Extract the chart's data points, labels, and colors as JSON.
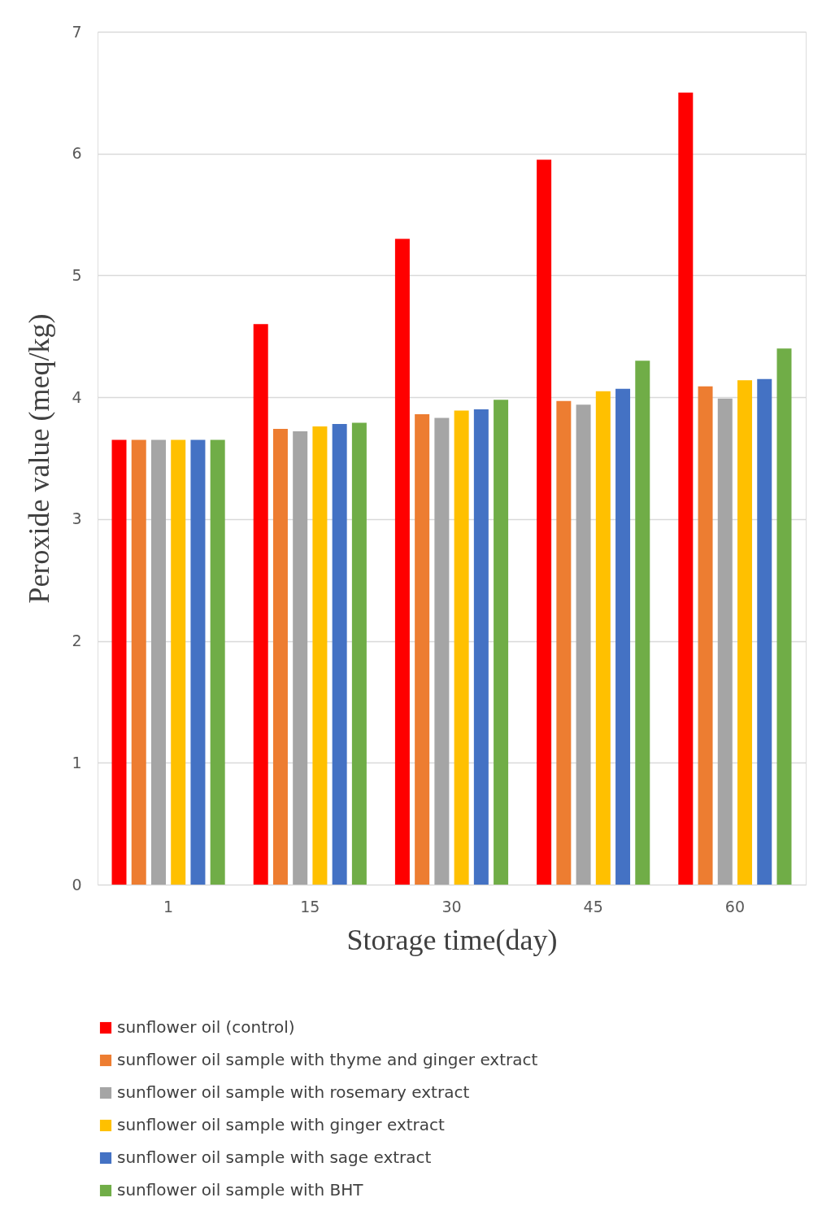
{
  "chart_data": {
    "type": "bar",
    "xlabel": "Storage time(day)",
    "ylabel": "Peroxide value (meq/kg)",
    "categories": [
      "1",
      "15",
      "30",
      "45",
      "60"
    ],
    "ylim": [
      0,
      7
    ],
    "yticks": [
      0,
      1,
      2,
      3,
      4,
      5,
      6,
      7
    ],
    "grid": "y",
    "legend": "bottom",
    "series": [
      {
        "name": "sunflower oil (control)",
        "color": "#ff0000",
        "values": [
          3.65,
          4.6,
          5.3,
          5.95,
          6.5
        ]
      },
      {
        "name": "sunflower oil sample with thyme and ginger extract",
        "color": "#ed7d31",
        "values": [
          3.65,
          3.74,
          3.86,
          3.97,
          4.09
        ]
      },
      {
        "name": "sunflower oil sample with rosemary  extract",
        "color": "#a5a5a5",
        "values": [
          3.65,
          3.72,
          3.83,
          3.94,
          3.99
        ]
      },
      {
        "name": "sunflower oil sample with ginger   extract",
        "color": "#ffc000",
        "values": [
          3.65,
          3.76,
          3.89,
          4.05,
          4.14
        ]
      },
      {
        "name": "sunflower oil sample with sage  extract",
        "color": "#4472c4",
        "values": [
          3.65,
          3.78,
          3.9,
          4.07,
          4.15
        ]
      },
      {
        "name": "sunflower oil sample with BHT",
        "color": "#70ad47",
        "values": [
          3.65,
          3.79,
          3.98,
          4.3,
          4.4
        ]
      }
    ]
  }
}
